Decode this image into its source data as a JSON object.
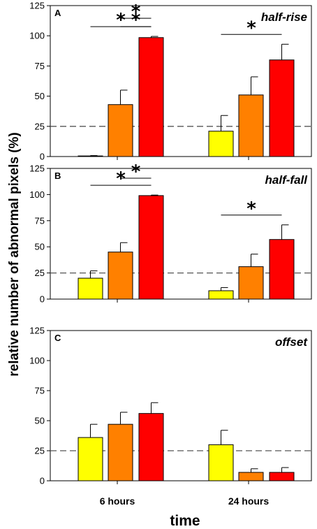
{
  "figure": {
    "ylabel": "relative number of abnormal pixels (%)",
    "xlabel": "time",
    "groups": [
      "6 hours",
      "24 hours"
    ]
  },
  "colors": {
    "level1": "#ffff00",
    "level2": "#ff8000",
    "level3": "#ff0000"
  },
  "chart_data": [
    {
      "type": "bar",
      "panel": "A",
      "title": "half-rise",
      "categories": [
        "6 hours",
        "24 hours"
      ],
      "series": [
        {
          "values": [
            0.5,
            21
          ],
          "errors": [
            0.3,
            13
          ]
        },
        {
          "values": [
            43,
            51
          ],
          "errors": [
            12,
            15
          ]
        },
        {
          "values": [
            98.5,
            80
          ],
          "errors": [
            1,
            13
          ]
        }
      ],
      "ylim": [
        0,
        125
      ],
      "yticks": [
        0,
        25,
        50,
        75,
        100,
        125
      ],
      "reference_line": 25,
      "significance": [
        {
          "group": "6 hours",
          "from": 1,
          "to": 2,
          "label": "*"
        },
        {
          "group": "6 hours",
          "from": 0,
          "to": 2,
          "label": "*"
        },
        {
          "group": "6 hours",
          "from": 1,
          "to": 2,
          "label": "*",
          "level": 2
        },
        {
          "group": "24 hours",
          "from": 0,
          "to": 2,
          "label": "*"
        }
      ]
    },
    {
      "type": "bar",
      "panel": "B",
      "title": "half-fall",
      "categories": [
        "6 hours",
        "24 hours"
      ],
      "series": [
        {
          "values": [
            20,
            8
          ],
          "errors": [
            7,
            3
          ]
        },
        {
          "values": [
            45,
            31
          ],
          "errors": [
            9,
            12
          ]
        },
        {
          "values": [
            99,
            57
          ],
          "errors": [
            0.5,
            14
          ]
        }
      ],
      "ylim": [
        0,
        125
      ],
      "yticks": [
        0,
        25,
        50,
        75,
        100,
        125
      ],
      "reference_line": 25,
      "significance": [
        {
          "group": "6 hours",
          "from": 0,
          "to": 2,
          "label": "*"
        },
        {
          "group": "6 hours",
          "from": 1,
          "to": 2,
          "label": "*",
          "level": 2
        },
        {
          "group": "24 hours",
          "from": 0,
          "to": 2,
          "label": "*"
        }
      ]
    },
    {
      "type": "bar",
      "panel": "C",
      "title": "offset",
      "categories": [
        "6 hours",
        "24 hours"
      ],
      "series": [
        {
          "values": [
            36,
            30
          ],
          "errors": [
            11,
            12
          ]
        },
        {
          "values": [
            47,
            7
          ],
          "errors": [
            10,
            3
          ]
        },
        {
          "values": [
            56,
            7
          ],
          "errors": [
            9,
            4
          ]
        }
      ],
      "ylim": [
        0,
        125
      ],
      "yticks": [
        0,
        25,
        50,
        75,
        100,
        125
      ],
      "reference_line": 25,
      "significance": []
    }
  ]
}
